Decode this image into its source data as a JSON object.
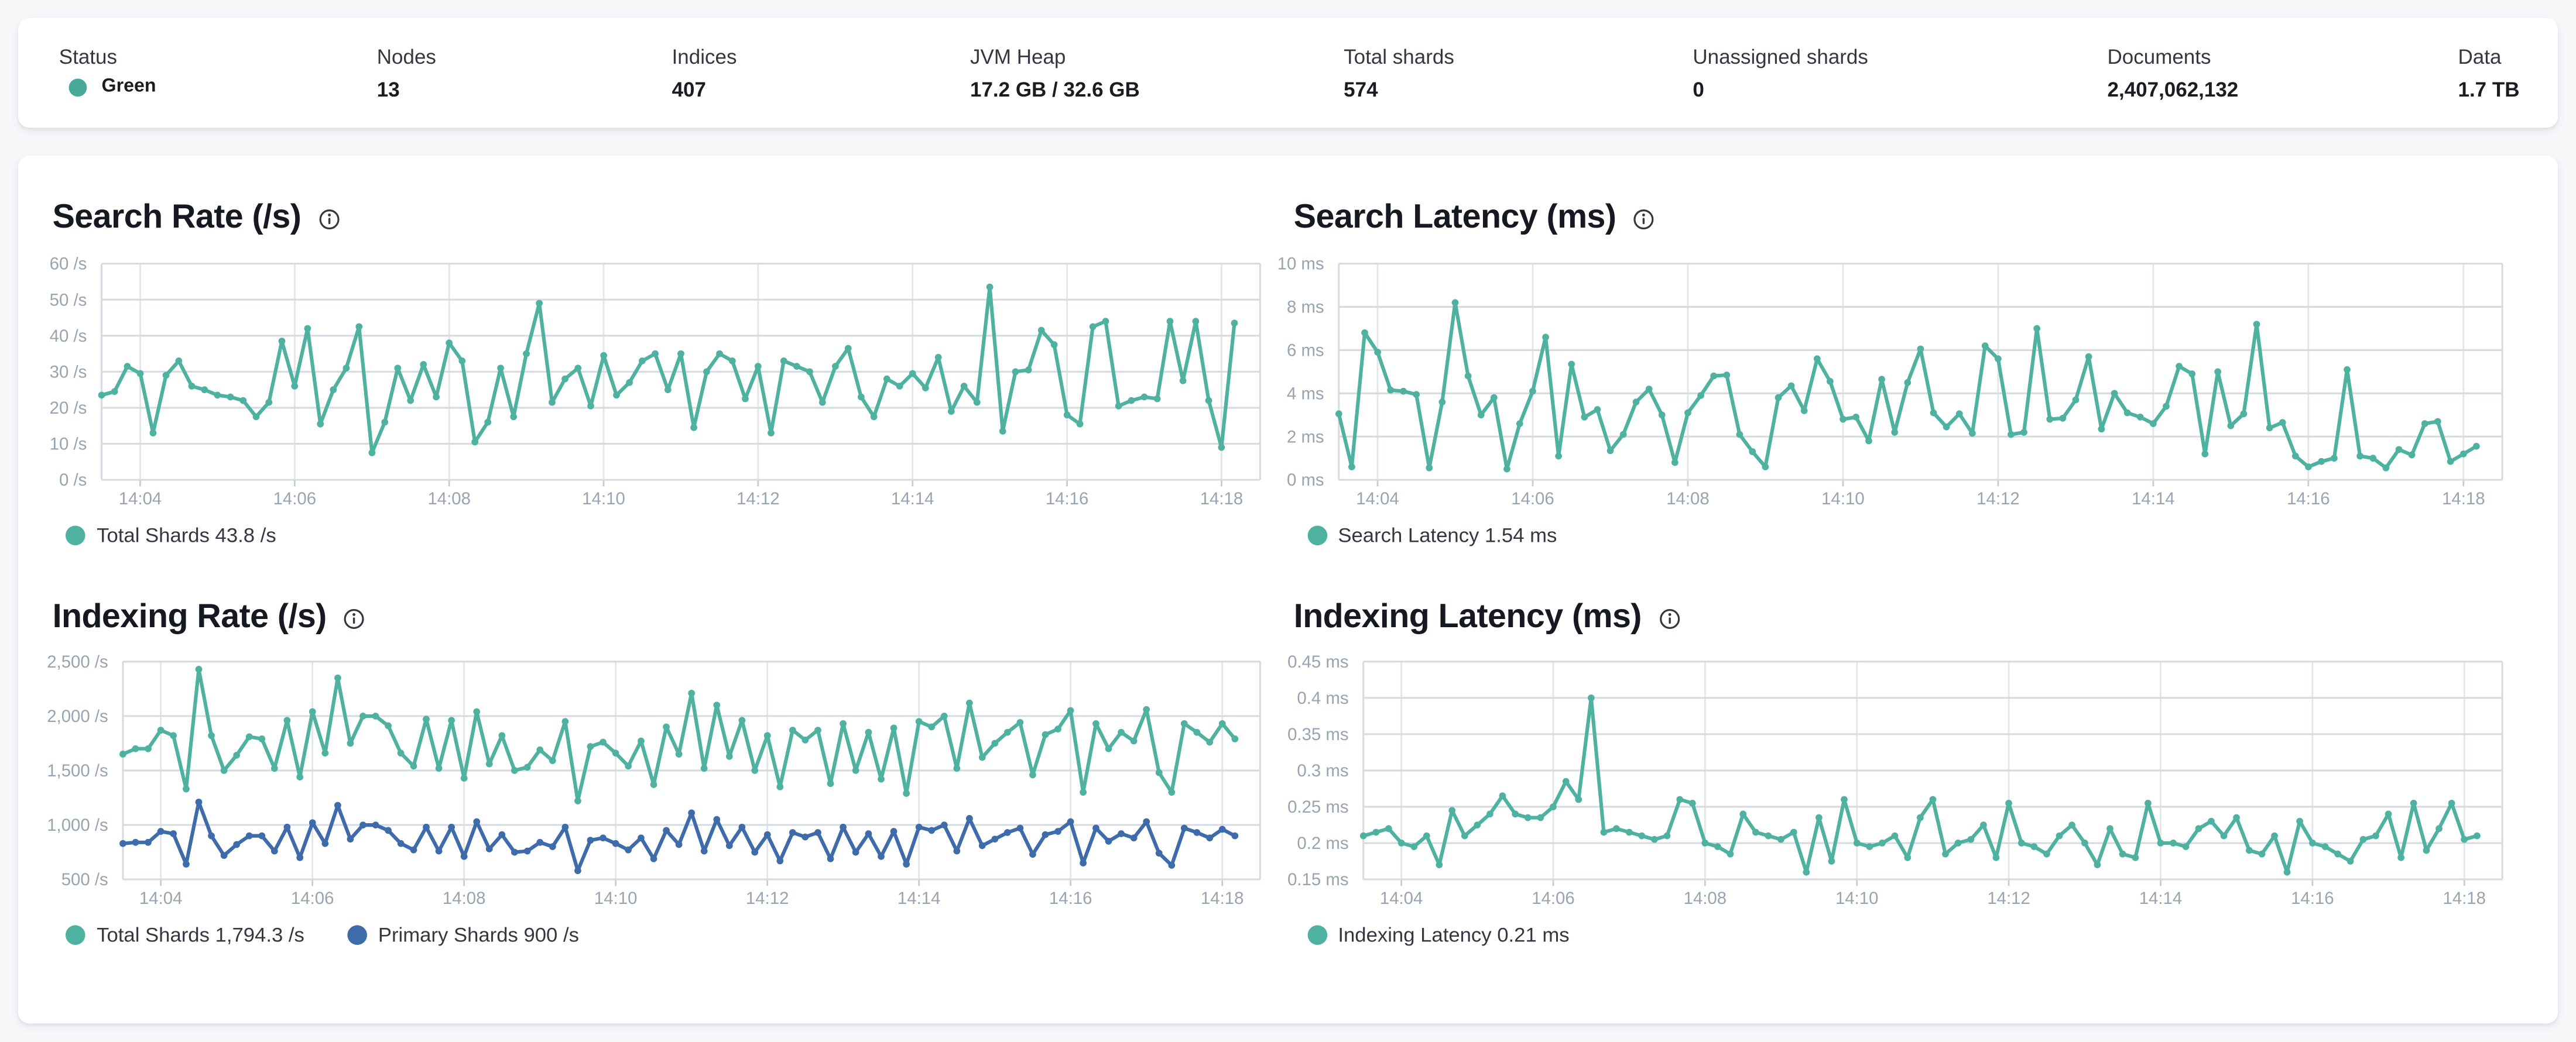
{
  "colors": {
    "health": "#48a89a",
    "teal": "#4fb2a1",
    "blue": "#3e6cab"
  },
  "icons": {
    "chart_info": "i-in-circle",
    "status_health": "green-dot"
  },
  "stats": {
    "items": [
      {
        "label": "Status",
        "value": "Green"
      },
      {
        "label": "Nodes",
        "value": "13"
      },
      {
        "label": "Indices",
        "value": "407"
      },
      {
        "label": "JVM Heap",
        "value": "17.2 GB / 32.6 GB"
      },
      {
        "label": "Total shards",
        "value": "574"
      },
      {
        "label": "Unassigned shards",
        "value": "0"
      },
      {
        "label": "Documents",
        "value": "2,407,062,132"
      },
      {
        "label": "Data",
        "value": "1.7 TB"
      }
    ]
  },
  "chart_data": [
    {
      "type": "line",
      "title": "Search Rate (/s)",
      "ylabel": "/s",
      "ylim": [
        0,
        60
      ],
      "t_domain": 900,
      "grid": true,
      "legend_position": "bottom",
      "yticks": [
        {
          "label": "0 /s",
          "v": 0
        },
        {
          "label": "10 /s",
          "v": 10
        },
        {
          "label": "20 /s",
          "v": 20
        },
        {
          "label": "30 /s",
          "v": 30
        },
        {
          "label": "40 /s",
          "v": 40
        },
        {
          "label": "50 /s",
          "v": 50
        },
        {
          "label": "60 /s",
          "v": 60
        }
      ],
      "xticks": [
        {
          "label": "14:04",
          "t": 30
        },
        {
          "label": "14:06",
          "t": 150
        },
        {
          "label": "14:08",
          "t": 270
        },
        {
          "label": "14:10",
          "t": 390
        },
        {
          "label": "14:12",
          "t": 510
        },
        {
          "label": "14:14",
          "t": 630
        },
        {
          "label": "14:16",
          "t": 750
        },
        {
          "label": "14:18",
          "t": 870
        }
      ],
      "series": [
        {
          "name": "Total Shards",
          "legend": "Total Shards 43.8 /s",
          "current_value": "43.8 /s",
          "color": "#4fb2a1",
          "dt": 10,
          "values": [
            23.5,
            24.5,
            31.5,
            29.5,
            13,
            29,
            33,
            26,
            25,
            23.5,
            23,
            22,
            17.5,
            21.5,
            38.5,
            26,
            42,
            15.5,
            25,
            31,
            42.5,
            7.5,
            16,
            31,
            22,
            32,
            23,
            38,
            33,
            10.5,
            16,
            31,
            17.5,
            35,
            49,
            21.5,
            28,
            31,
            20.5,
            34.5,
            23.5,
            27,
            33,
            35,
            25,
            35,
            14.5,
            30,
            35,
            33,
            22.5,
            31.5,
            13,
            33,
            31.5,
            30,
            21.5,
            31.5,
            36.5,
            23,
            17.5,
            28,
            26,
            29.5,
            25.5,
            34,
            19,
            26,
            21.5,
            53.5,
            13.5,
            30,
            30.5,
            41.5,
            37.5,
            18,
            15.5,
            42.5,
            44,
            20.5,
            22,
            23,
            22.5,
            44,
            27.5,
            44,
            22,
            9,
            43.5
          ]
        }
      ]
    },
    {
      "type": "line",
      "title": "Search Latency (ms)",
      "ylabel": "ms",
      "ylim": [
        0,
        10
      ],
      "t_domain": 900,
      "grid": true,
      "legend_position": "bottom",
      "yticks": [
        {
          "label": "0 ms",
          "v": 0
        },
        {
          "label": "2 ms",
          "v": 2
        },
        {
          "label": "4 ms",
          "v": 4
        },
        {
          "label": "6 ms",
          "v": 6
        },
        {
          "label": "8 ms",
          "v": 8
        },
        {
          "label": "10 ms",
          "v": 10
        }
      ],
      "xticks": [
        {
          "label": "14:04",
          "t": 30
        },
        {
          "label": "14:06",
          "t": 150
        },
        {
          "label": "14:08",
          "t": 270
        },
        {
          "label": "14:10",
          "t": 390
        },
        {
          "label": "14:12",
          "t": 510
        },
        {
          "label": "14:14",
          "t": 630
        },
        {
          "label": "14:16",
          "t": 750
        },
        {
          "label": "14:18",
          "t": 870
        }
      ],
      "series": [
        {
          "name": "Search Latency",
          "legend": "Search Latency 1.54 ms",
          "current_value": "1.54 ms",
          "color": "#4fb2a1",
          "dt": 10,
          "values": [
            3.05,
            0.6,
            6.8,
            5.9,
            4.15,
            4.1,
            3.95,
            0.55,
            3.6,
            8.2,
            4.8,
            3.0,
            3.8,
            0.5,
            2.6,
            4.1,
            6.6,
            1.1,
            5.35,
            2.9,
            3.25,
            1.35,
            2.1,
            3.6,
            4.2,
            3.0,
            0.8,
            3.1,
            3.9,
            4.8,
            4.85,
            2.1,
            1.3,
            0.6,
            3.8,
            4.35,
            3.2,
            5.6,
            4.55,
            2.8,
            2.9,
            1.8,
            4.65,
            2.2,
            4.5,
            6.05,
            3.1,
            2.45,
            3.05,
            2.15,
            6.2,
            5.6,
            2.1,
            2.2,
            7.0,
            2.8,
            2.85,
            3.7,
            5.7,
            2.35,
            4.0,
            3.1,
            2.9,
            2.6,
            3.4,
            5.25,
            4.9,
            1.2,
            5.0,
            2.5,
            3.05,
            7.2,
            2.4,
            2.65,
            1.1,
            0.6,
            0.85,
            1.0,
            5.1,
            1.1,
            1.0,
            0.55,
            1.4,
            1.15,
            2.6,
            2.7,
            0.85,
            1.2,
            1.55
          ]
        }
      ]
    },
    {
      "type": "line",
      "title": "Indexing Rate (/s)",
      "ylabel": "/s",
      "ylim": [
        500,
        2500
      ],
      "t_domain": 900,
      "grid": true,
      "legend_position": "bottom",
      "yticks": [
        {
          "label": "500 /s",
          "v": 500
        },
        {
          "label": "1,000 /s",
          "v": 1000
        },
        {
          "label": "1,500 /s",
          "v": 1500
        },
        {
          "label": "2,000 /s",
          "v": 2000
        },
        {
          "label": "2,500 /s",
          "v": 2500
        }
      ],
      "xticks": [
        {
          "label": "14:04",
          "t": 30
        },
        {
          "label": "14:06",
          "t": 150
        },
        {
          "label": "14:08",
          "t": 270
        },
        {
          "label": "14:10",
          "t": 390
        },
        {
          "label": "14:12",
          "t": 510
        },
        {
          "label": "14:14",
          "t": 630
        },
        {
          "label": "14:16",
          "t": 750
        },
        {
          "label": "14:18",
          "t": 870
        }
      ],
      "series": [
        {
          "name": "Total Shards",
          "legend": "Total Shards 1,794.3 /s",
          "current_value": "1,794.3 /s",
          "color": "#4fb2a1",
          "dt": 10,
          "values": [
            1650,
            1700,
            1700,
            1870,
            1820,
            1330,
            2430,
            1820,
            1500,
            1640,
            1810,
            1790,
            1520,
            1960,
            1440,
            2040,
            1660,
            2350,
            1750,
            2000,
            2000,
            1910,
            1660,
            1540,
            1970,
            1520,
            1960,
            1430,
            2040,
            1560,
            1820,
            1500,
            1530,
            1690,
            1590,
            1950,
            1220,
            1720,
            1760,
            1660,
            1540,
            1770,
            1370,
            1900,
            1650,
            2210,
            1520,
            2100,
            1630,
            1960,
            1500,
            1820,
            1350,
            1870,
            1780,
            1870,
            1380,
            1930,
            1500,
            1850,
            1420,
            1890,
            1290,
            1950,
            1900,
            2000,
            1520,
            2120,
            1620,
            1750,
            1850,
            1940,
            1460,
            1830,
            1880,
            2050,
            1300,
            1930,
            1700,
            1850,
            1770,
            2060,
            1480,
            1300,
            1930,
            1850,
            1760,
            1930,
            1790
          ]
        },
        {
          "name": "Primary Shards",
          "legend": "Primary Shards 900 /s",
          "current_value": "900 /s",
          "color": "#3e6cab",
          "dt": 10,
          "values": [
            830,
            840,
            840,
            940,
            920,
            640,
            1210,
            900,
            720,
            820,
            900,
            900,
            760,
            980,
            700,
            1020,
            830,
            1180,
            870,
            1000,
            1000,
            950,
            830,
            770,
            980,
            760,
            980,
            710,
            1030,
            780,
            910,
            750,
            760,
            840,
            800,
            980,
            580,
            860,
            880,
            830,
            770,
            880,
            690,
            950,
            820,
            1110,
            760,
            1050,
            810,
            980,
            750,
            910,
            670,
            930,
            890,
            930,
            690,
            980,
            750,
            920,
            710,
            940,
            640,
            980,
            950,
            1000,
            760,
            1060,
            810,
            870,
            930,
            970,
            730,
            910,
            940,
            1030,
            650,
            970,
            850,
            920,
            880,
            1030,
            740,
            630,
            970,
            930,
            880,
            960,
            900
          ]
        }
      ]
    },
    {
      "type": "line",
      "title": "Indexing Latency (ms)",
      "ylabel": "ms",
      "ylim": [
        0.15,
        0.45
      ],
      "t_domain": 900,
      "grid": true,
      "legend_position": "bottom",
      "yticks": [
        {
          "label": "0.15 ms",
          "v": 0.15
        },
        {
          "label": "0.2 ms",
          "v": 0.2
        },
        {
          "label": "0.25 ms",
          "v": 0.25
        },
        {
          "label": "0.3 ms",
          "v": 0.3
        },
        {
          "label": "0.35 ms",
          "v": 0.35
        },
        {
          "label": "0.4 ms",
          "v": 0.4
        },
        {
          "label": "0.45 ms",
          "v": 0.45
        }
      ],
      "xticks": [
        {
          "label": "14:04",
          "t": 30
        },
        {
          "label": "14:06",
          "t": 150
        },
        {
          "label": "14:08",
          "t": 270
        },
        {
          "label": "14:10",
          "t": 390
        },
        {
          "label": "14:12",
          "t": 510
        },
        {
          "label": "14:14",
          "t": 630
        },
        {
          "label": "14:16",
          "t": 750
        },
        {
          "label": "14:18",
          "t": 870
        }
      ],
      "series": [
        {
          "name": "Indexing Latency",
          "legend": "Indexing Latency 0.21 ms",
          "current_value": "0.21 ms",
          "color": "#4fb2a1",
          "dt": 10,
          "values": [
            0.21,
            0.215,
            0.22,
            0.2,
            0.195,
            0.21,
            0.17,
            0.245,
            0.21,
            0.225,
            0.24,
            0.265,
            0.24,
            0.235,
            0.235,
            0.25,
            0.285,
            0.26,
            0.4,
            0.215,
            0.22,
            0.215,
            0.21,
            0.205,
            0.21,
            0.26,
            0.255,
            0.2,
            0.195,
            0.185,
            0.24,
            0.215,
            0.21,
            0.205,
            0.215,
            0.16,
            0.235,
            0.175,
            0.26,
            0.2,
            0.195,
            0.2,
            0.21,
            0.18,
            0.235,
            0.26,
            0.185,
            0.2,
            0.205,
            0.225,
            0.18,
            0.255,
            0.2,
            0.195,
            0.185,
            0.21,
            0.225,
            0.2,
            0.17,
            0.22,
            0.185,
            0.18,
            0.255,
            0.2,
            0.2,
            0.195,
            0.22,
            0.23,
            0.21,
            0.235,
            0.19,
            0.185,
            0.21,
            0.16,
            0.23,
            0.2,
            0.195,
            0.185,
            0.175,
            0.205,
            0.21,
            0.24,
            0.18,
            0.255,
            0.19,
            0.22,
            0.255,
            0.205,
            0.21
          ]
        }
      ]
    }
  ]
}
